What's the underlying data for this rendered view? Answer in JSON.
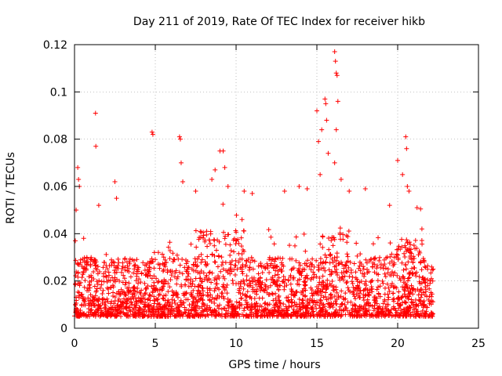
{
  "chart_data": {
    "type": "scatter",
    "title": "Day 211 of 2019, Rate Of TEC Index for receiver hikb",
    "xlabel": "GPS time / hours",
    "ylabel": "ROTI / TECUs",
    "xlim": [
      0,
      25
    ],
    "ylim": [
      0,
      0.12
    ],
    "xticks": [
      0,
      5,
      10,
      15,
      20,
      25
    ],
    "xtick_labels": [
      "0",
      "5",
      "10",
      "15",
      "20",
      "25"
    ],
    "yticks": [
      0,
      0.02,
      0.04,
      0.06,
      0.08,
      0.1,
      0.12
    ],
    "ytick_labels": [
      "0",
      "0.02",
      "0.04",
      "0.06",
      "0.08",
      "0.1",
      "0.12"
    ],
    "grid": true,
    "marker": "+",
    "color": "#ff0000",
    "series": [
      {
        "name": "ROTI",
        "x_range": [
          0,
          22.2
        ],
        "bulk_band": [
          0.005,
          0.03
        ],
        "points": [
          [
            0.05,
            0.037
          ],
          [
            0.1,
            0.05
          ],
          [
            0.2,
            0.068
          ],
          [
            0.25,
            0.063
          ],
          [
            0.3,
            0.06
          ],
          [
            1.3,
            0.091
          ],
          [
            1.32,
            0.077
          ],
          [
            1.5,
            0.052
          ],
          [
            2.5,
            0.062
          ],
          [
            2.6,
            0.055
          ],
          [
            4.8,
            0.083
          ],
          [
            4.85,
            0.082
          ],
          [
            6.5,
            0.081
          ],
          [
            6.55,
            0.08
          ],
          [
            6.6,
            0.07
          ],
          [
            6.7,
            0.062
          ],
          [
            7.5,
            0.058
          ],
          [
            8.5,
            0.063
          ],
          [
            8.7,
            0.067
          ],
          [
            9.0,
            0.075
          ],
          [
            9.2,
            0.075
          ],
          [
            9.3,
            0.068
          ],
          [
            9.5,
            0.06
          ],
          [
            10.5,
            0.058
          ],
          [
            11.0,
            0.057
          ],
          [
            13.0,
            0.058
          ],
          [
            13.9,
            0.06
          ],
          [
            14.4,
            0.059
          ],
          [
            15.0,
            0.092
          ],
          [
            15.1,
            0.079
          ],
          [
            15.2,
            0.065
          ],
          [
            15.3,
            0.084
          ],
          [
            15.5,
            0.097
          ],
          [
            15.55,
            0.095
          ],
          [
            15.6,
            0.088
          ],
          [
            15.7,
            0.074
          ],
          [
            16.1,
            0.117
          ],
          [
            16.15,
            0.113
          ],
          [
            16.2,
            0.108
          ],
          [
            16.25,
            0.107
          ],
          [
            16.3,
            0.096
          ],
          [
            16.2,
            0.084
          ],
          [
            16.1,
            0.07
          ],
          [
            16.5,
            0.063
          ],
          [
            17.0,
            0.058
          ],
          [
            18.0,
            0.059
          ],
          [
            19.5,
            0.052
          ],
          [
            20.0,
            0.071
          ],
          [
            20.3,
            0.065
          ],
          [
            20.5,
            0.081
          ],
          [
            20.55,
            0.076
          ],
          [
            20.6,
            0.06
          ],
          [
            20.7,
            0.058
          ],
          [
            21.2,
            0.051
          ],
          [
            21.5,
            0.042
          ]
        ]
      }
    ]
  }
}
